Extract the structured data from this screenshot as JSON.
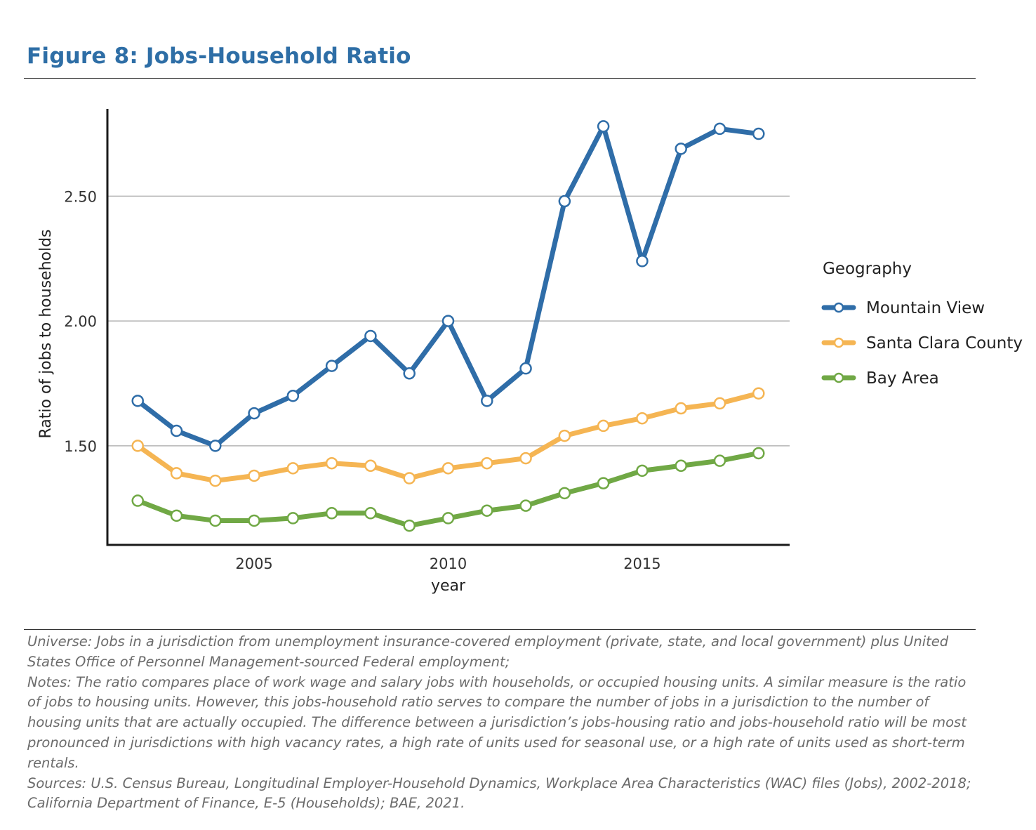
{
  "figure_title": "Figure 8: Jobs-Household Ratio",
  "chart_data": {
    "type": "line",
    "xlabel": "year",
    "ylabel": "Ratio of jobs to households",
    "x": [
      2002,
      2003,
      2004,
      2005,
      2006,
      2007,
      2008,
      2009,
      2010,
      2011,
      2012,
      2013,
      2014,
      2015,
      2016,
      2017,
      2018
    ],
    "xticks": [
      2005,
      2010,
      2015
    ],
    "xtick_labels": [
      "2005",
      "2010",
      "2015"
    ],
    "yticks": [
      1.5,
      2.0,
      2.5
    ],
    "ytick_labels": [
      "1.50",
      "2.00",
      "2.50"
    ],
    "xlim": [
      2001.2,
      2018.8
    ],
    "ylim": [
      1.1,
      2.85
    ],
    "grid": "horizontal",
    "legend_title": "Geography",
    "legend_position": "right",
    "series": [
      {
        "name": "Mountain View",
        "color": "#2f6da8",
        "values": [
          1.68,
          1.56,
          1.5,
          1.63,
          1.7,
          1.82,
          1.94,
          1.79,
          2.0,
          1.68,
          1.81,
          2.48,
          2.78,
          2.24,
          2.69,
          2.77,
          2.75
        ]
      },
      {
        "name": "Santa Clara County",
        "color": "#f5b553",
        "values": [
          1.5,
          1.39,
          1.36,
          1.38,
          1.41,
          1.43,
          1.42,
          1.37,
          1.41,
          1.43,
          1.45,
          1.54,
          1.58,
          1.61,
          1.65,
          1.67,
          1.71
        ]
      },
      {
        "name": "Bay Area",
        "color": "#70a845",
        "values": [
          1.28,
          1.22,
          1.2,
          1.2,
          1.21,
          1.23,
          1.23,
          1.18,
          1.21,
          1.24,
          1.26,
          1.31,
          1.35,
          1.4,
          1.42,
          1.44,
          1.47
        ]
      }
    ]
  },
  "notes": {
    "universe": "Universe: Jobs in a jurisdiction from unemployment insurance-covered employment (private, state, and local government) plus United States Office of Personnel Management-sourced Federal employment;",
    "notes": "Notes: The ratio compares place of work wage and salary jobs with households, or occupied housing units.  A similar measure is the ratio of jobs to housing units.  However, this jobs-household ratio serves to compare the number of jobs in a jurisdiction to the number of housing units that are actually occupied.  The difference between a jurisdiction’s jobs-housing ratio and jobs-household ratio will be most pronounced in jurisdictions with high vacancy rates, a high rate of units used for seasonal use, or a high rate of units used as short-term rentals.",
    "sources": "Sources: U.S. Census Bureau, Longitudinal Employer-Household Dynamics, Workplace Area Characteristics (WAC) files (Jobs), 2002-2018; California Department of Finance, E-5 (Households); BAE, 2021."
  }
}
